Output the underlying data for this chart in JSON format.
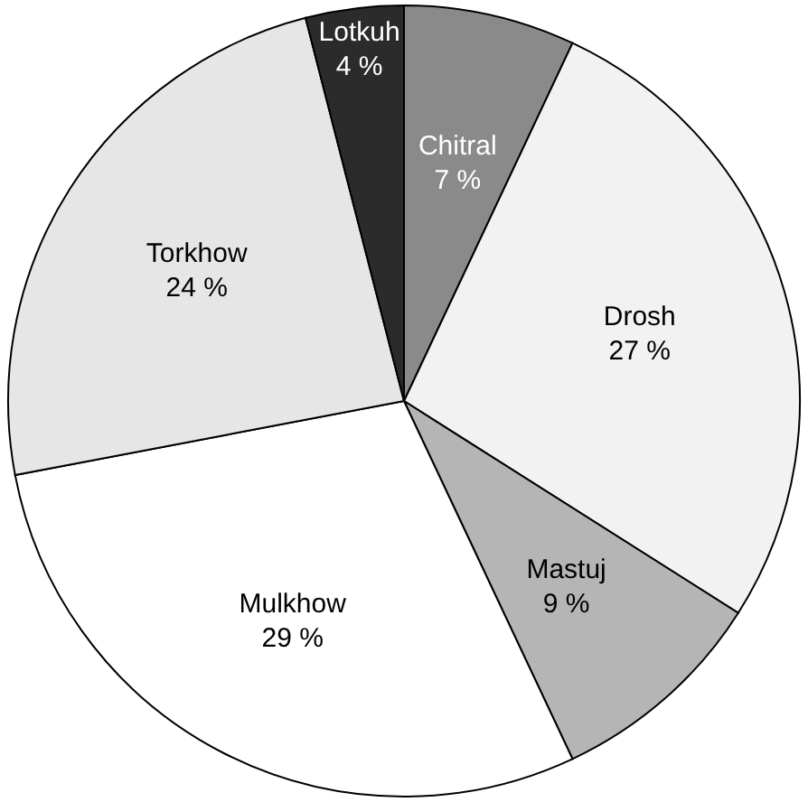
{
  "chart_data": {
    "type": "pie",
    "categories": [
      "Chitral",
      "Drosh",
      "Mastuj",
      "Mulkhow",
      "Torkhow",
      "Lotkuh"
    ],
    "values": [
      7,
      27,
      9,
      29,
      24,
      4
    ],
    "value_labels": [
      "7 %",
      "27 %",
      "9 %",
      "29 %",
      "24 %",
      "4 %"
    ],
    "colors": [
      "#8a8a8a",
      "#f2f2f2",
      "#b5b5b5",
      "#ffffff",
      "#e6e6e6",
      "#2b2b2b"
    ]
  }
}
